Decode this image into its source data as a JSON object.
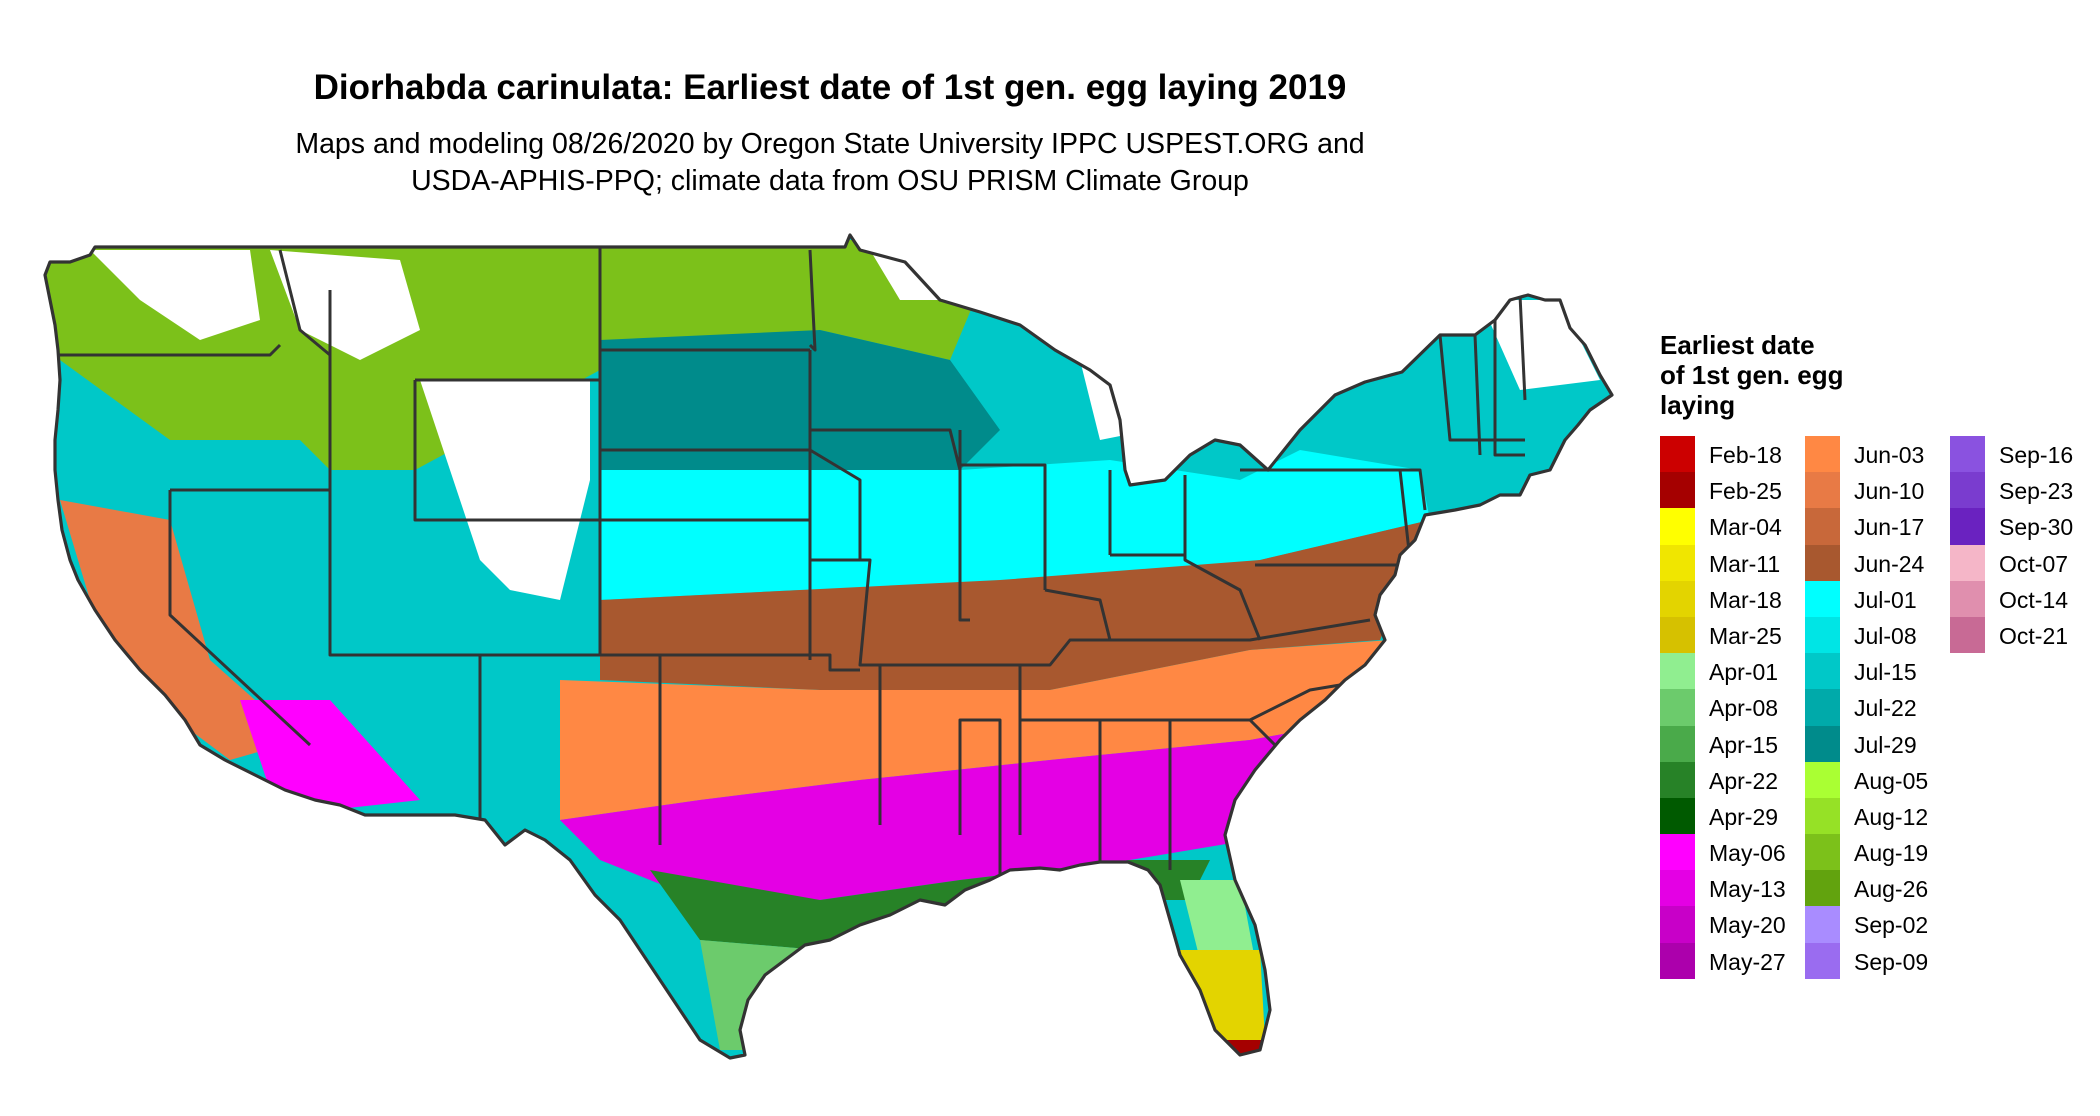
{
  "title": "Diorhabda carinulata: Earliest date of 1st gen. egg laying 2019",
  "subtitle": {
    "line1": "Maps and modeling 08/26/2020 by Oregon State University IPPC USPEST.ORG and",
    "line2": "USDA-APHIS-PPQ; climate data from OSU PRISM Climate Group"
  },
  "legend": {
    "title_lines": [
      "Earliest date",
      "of 1st gen. egg",
      "laying"
    ],
    "entries": [
      {
        "label": "Feb-18",
        "color": "#CC0000"
      },
      {
        "label": "Feb-25",
        "color": "#A50000"
      },
      {
        "label": "Mar-04",
        "color": "#FFFF00"
      },
      {
        "label": "Mar-11",
        "color": "#F0E600"
      },
      {
        "label": "Mar-18",
        "color": "#E3D400"
      },
      {
        "label": "Mar-25",
        "color": "#D6C100"
      },
      {
        "label": "Apr-01",
        "color": "#90EE90"
      },
      {
        "label": "Apr-08",
        "color": "#6CCB6C"
      },
      {
        "label": "Apr-15",
        "color": "#4AAA4A"
      },
      {
        "label": "Apr-22",
        "color": "#278227"
      },
      {
        "label": "Apr-29",
        "color": "#005A00"
      },
      {
        "label": "May-06",
        "color": "#FF00FF"
      },
      {
        "label": "May-13",
        "color": "#E400E4"
      },
      {
        "label": "May-20",
        "color": "#C800C8"
      },
      {
        "label": "May-27",
        "color": "#AC00AC"
      },
      {
        "label": "Jun-03",
        "color": "#FF8844"
      },
      {
        "label": "Jun-10",
        "color": "#E87A45"
      },
      {
        "label": "Jun-17",
        "color": "#C8683A"
      },
      {
        "label": "Jun-24",
        "color": "#A8582F"
      },
      {
        "label": "Jul-01",
        "color": "#00FFFF"
      },
      {
        "label": "Jul-08",
        "color": "#00E5E5"
      },
      {
        "label": "Jul-15",
        "color": "#00C8C8"
      },
      {
        "label": "Jul-22",
        "color": "#00AAAA"
      },
      {
        "label": "Jul-29",
        "color": "#008B8B"
      },
      {
        "label": "Aug-05",
        "color": "#AAFF33"
      },
      {
        "label": "Aug-12",
        "color": "#96E126"
      },
      {
        "label": "Aug-19",
        "color": "#7CC11A"
      },
      {
        "label": "Aug-26",
        "color": "#62A30E"
      },
      {
        "label": "Sep-02",
        "color": "#A98CFF"
      },
      {
        "label": "Sep-09",
        "color": "#9A6CF0"
      },
      {
        "label": "Sep-16",
        "color": "#8A52E0"
      },
      {
        "label": "Sep-23",
        "color": "#7A3CCF"
      },
      {
        "label": "Sep-30",
        "color": "#6A22C0"
      },
      {
        "label": "Oct-07",
        "color": "#F5B6C8"
      },
      {
        "label": "Oct-14",
        "color": "#E08FAE"
      },
      {
        "label": "Oct-21",
        "color": "#C86A95"
      }
    ]
  },
  "map": {
    "border_color": "#333333",
    "no_data_color": "#FFFFFF"
  }
}
